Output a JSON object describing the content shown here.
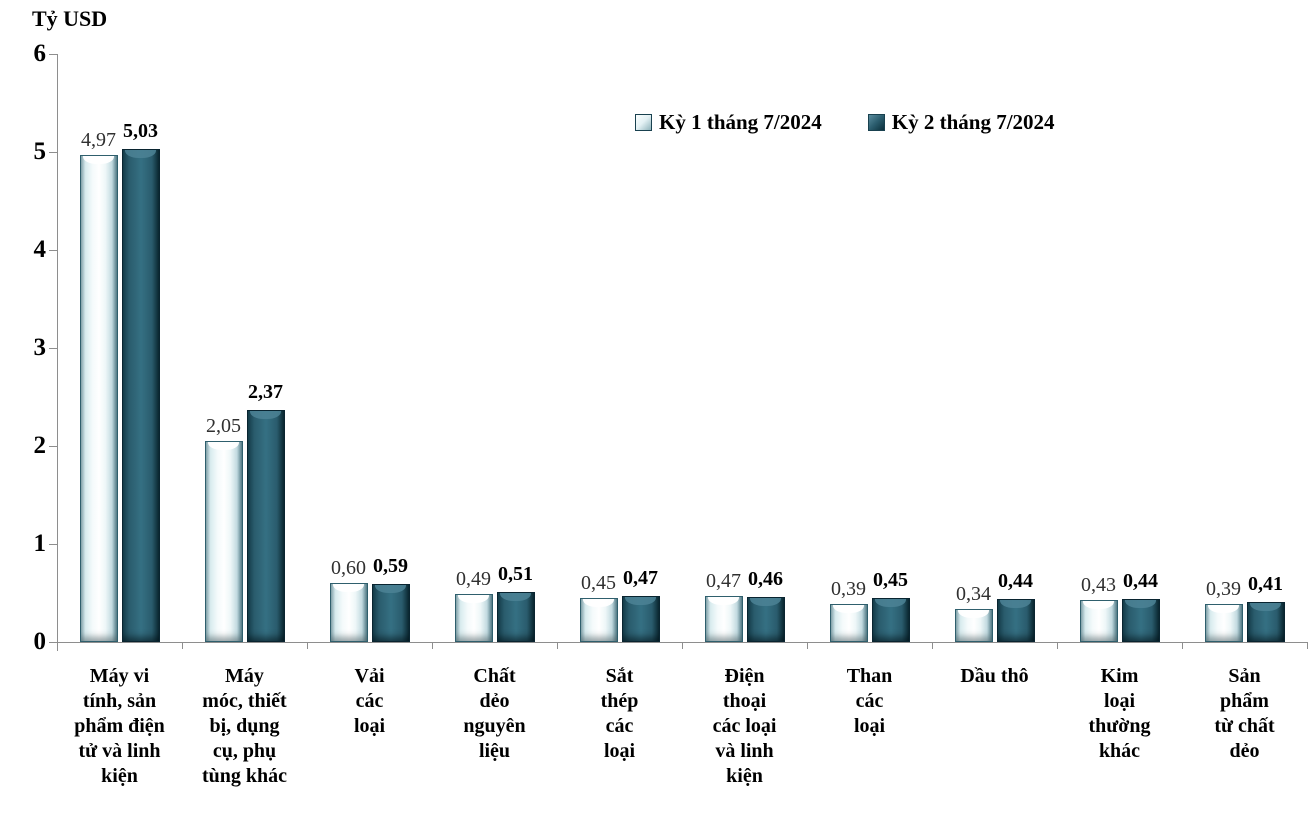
{
  "title": "Tỷ USD",
  "legend": [
    {
      "label": "Kỳ 1 tháng 7/2024"
    },
    {
      "label": "Kỳ 2 tháng 7/2024"
    }
  ],
  "colors": {
    "series1_fill": "#eaf6f8",
    "series1_edge": "#2f5f6d",
    "series2_fill": "#2d6272",
    "series2_edge": "#092430",
    "axis": "#8e8e8e",
    "text": "#000000",
    "background": "#ffffff"
  },
  "chart_data": {
    "type": "bar",
    "title": "Tỷ USD",
    "xlabel": "",
    "ylabel": "Tỷ USD",
    "ylim": [
      0,
      6
    ],
    "yticks": [
      0,
      1,
      2,
      3,
      4,
      5,
      6
    ],
    "grid": false,
    "legend_position": "top-center",
    "decimal_separator": ",",
    "categories": [
      "Máy vi tính, sản phẩm điện tử và linh kiện",
      "Máy móc, thiết bị, dụng cụ, phụ tùng khác",
      "Vải các loại",
      "Chất dẻo nguyên liệu",
      "Sắt thép các loại",
      "Điện thoại các loại và linh kiện",
      "Than các loại",
      "Dầu thô",
      "Kim loại thường khác",
      "Sản phẩm từ chất dẻo"
    ],
    "category_line_breaks": [
      [
        "Máy vi",
        "tính, sản",
        "phẩm điện",
        "tử và linh",
        "kiện"
      ],
      [
        "Máy",
        "móc, thiết",
        "bị, dụng",
        "cụ, phụ",
        "tùng khác"
      ],
      [
        "Vải",
        "các",
        "loại"
      ],
      [
        "Chất",
        "dẻo",
        "nguyên",
        "liệu"
      ],
      [
        "Sắt",
        "thép",
        "các",
        "loại"
      ],
      [
        "Điện",
        "thoại",
        "các loại",
        "và linh",
        "kiện"
      ],
      [
        "Than",
        "các",
        "loại"
      ],
      [
        "Dầu thô"
      ],
      [
        "Kim",
        "loại",
        "thường",
        "khác"
      ],
      [
        "Sản",
        "phẩm",
        "từ chất",
        "dẻo"
      ]
    ],
    "series": [
      {
        "name": "Kỳ 1 tháng 7/2024",
        "values": [
          4.97,
          2.05,
          0.6,
          0.49,
          0.45,
          0.47,
          0.39,
          0.34,
          0.43,
          0.39
        ],
        "labels": [
          "4,97",
          "2,05",
          "0,60",
          "0,49",
          "0,45",
          "0,47",
          "0,39",
          "0,34",
          "0,43",
          "0,39"
        ]
      },
      {
        "name": "Kỳ 2 tháng 7/2024",
        "values": [
          5.03,
          2.37,
          0.59,
          0.51,
          0.47,
          0.46,
          0.45,
          0.44,
          0.44,
          0.41
        ],
        "labels": [
          "5,03",
          "2,37",
          "0,59",
          "0,51",
          "0,47",
          "0,46",
          "0,45",
          "0,44",
          "0,44",
          "0,41"
        ]
      }
    ]
  }
}
